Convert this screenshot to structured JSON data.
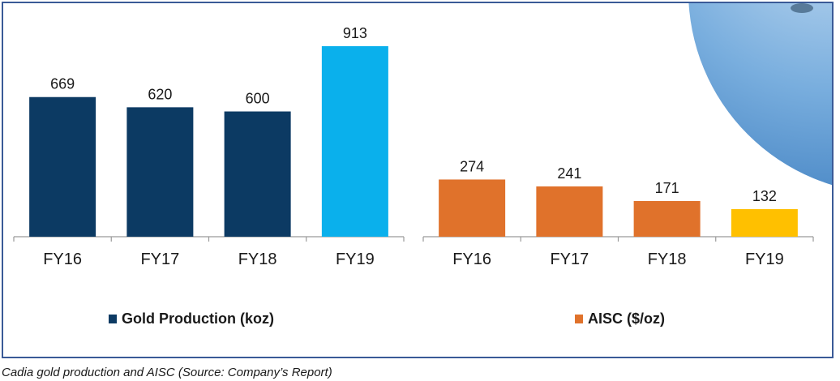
{
  "caption": "Cadia gold production and AISC (Source: Company’s Report)",
  "chart_data": [
    {
      "type": "bar",
      "categories": [
        "FY16",
        "FY17",
        "FY18",
        "FY19"
      ],
      "series": [
        {
          "name": "Gold Production (koz)",
          "values": [
            669,
            620,
            600,
            913
          ]
        }
      ],
      "bar_colors": [
        "#0c3a63",
        "#0c3a63",
        "#0c3a63",
        "#0ab0ec"
      ],
      "legend_color": "#0c3a63",
      "legend_position": "bottom",
      "ylim": [
        0,
        1000
      ],
      "grid": false
    },
    {
      "type": "bar",
      "categories": [
        "FY16",
        "FY17",
        "FY18",
        "FY19"
      ],
      "series": [
        {
          "name": "AISC ($/oz)",
          "values": [
            274,
            241,
            171,
            132
          ]
        }
      ],
      "bar_colors": [
        "#e0722b",
        "#e0722b",
        "#e0722b",
        "#ffc000"
      ],
      "legend_color": "#e0722b",
      "legend_position": "bottom",
      "ylim": [
        0,
        1000
      ],
      "grid": false
    }
  ]
}
